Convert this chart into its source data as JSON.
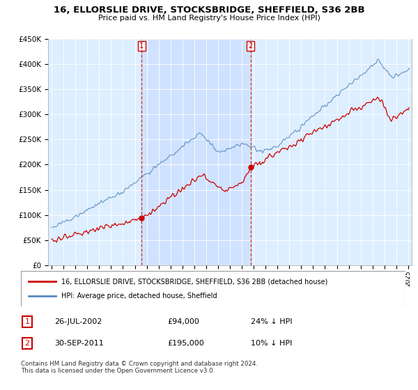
{
  "title": "16, ELLORSLIE DRIVE, STOCKSBRIDGE, SHEFFIELD, S36 2BB",
  "subtitle": "Price paid vs. HM Land Registry's House Price Index (HPI)",
  "ylim": [
    0,
    450000
  ],
  "yticks": [
    0,
    50000,
    100000,
    150000,
    200000,
    250000,
    300000,
    350000,
    400000,
    450000
  ],
  "ytick_labels": [
    "£0",
    "£50K",
    "£100K",
    "£150K",
    "£200K",
    "£250K",
    "£300K",
    "£350K",
    "£400K",
    "£450K"
  ],
  "sale1_date": "26-JUL-2002",
  "sale1_price": 94000,
  "sale1_hpi_diff": "24% ↓ HPI",
  "sale2_date": "30-SEP-2011",
  "sale2_price": 195000,
  "sale2_hpi_diff": "10% ↓ HPI",
  "sale1_x": 2002.57,
  "sale2_x": 2011.75,
  "legend_label1": "16, ELLORSLIE DRIVE, STOCKSBRIDGE, SHEFFIELD, S36 2BB (detached house)",
  "legend_label2": "HPI: Average price, detached house, Sheffield",
  "footer": "Contains HM Land Registry data © Crown copyright and database right 2024.\nThis data is licensed under the Open Government Licence v3.0.",
  "line_color_red": "#cc0000",
  "line_color_blue": "#5588bb",
  "bg_color": "#ddeeff",
  "shade_color": "#cce0ff",
  "annotation_box_color": "#cc0000",
  "xlim_left": 1994.7,
  "xlim_right": 2025.3
}
